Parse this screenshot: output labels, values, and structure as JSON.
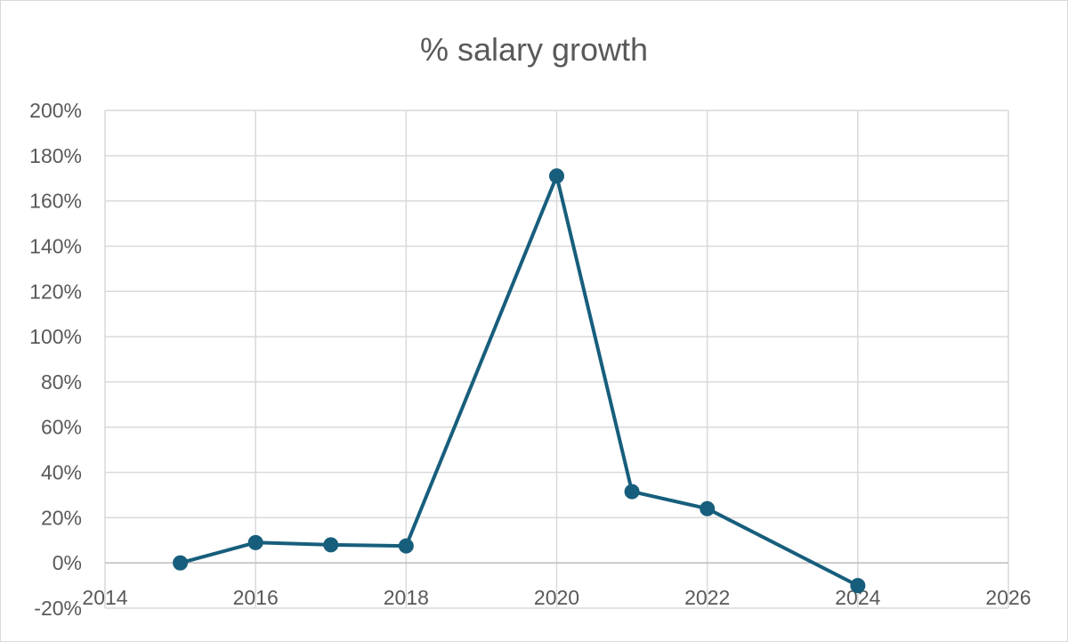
{
  "chart_data": {
    "type": "scatter",
    "title": "% salary growth",
    "xlabel": "",
    "ylabel": "",
    "xlim": [
      2014,
      2026
    ],
    "ylim": [
      -20,
      200
    ],
    "x_ticks": [
      "2014",
      "2016",
      "2018",
      "2020",
      "2022",
      "2024",
      "2026"
    ],
    "y_ticks": [
      "-20%",
      "0%",
      "20%",
      "40%",
      "60%",
      "80%",
      "100%",
      "120%",
      "140%",
      "160%",
      "180%",
      "200%"
    ],
    "grid": true,
    "legend": "none",
    "markers": true,
    "lines": true,
    "series": [
      {
        "color": "#175e7c",
        "points": [
          {
            "x": 2015,
            "y": 0
          },
          {
            "x": 2016,
            "y": 9
          },
          {
            "x": 2017,
            "y": 8
          },
          {
            "x": 2018,
            "y": 7.5
          },
          {
            "x": 2020,
            "y": 171
          },
          {
            "x": 2021,
            "y": 31.5
          },
          {
            "x": 2022,
            "y": 24
          },
          {
            "x": 2024,
            "y": -10
          }
        ]
      }
    ]
  }
}
